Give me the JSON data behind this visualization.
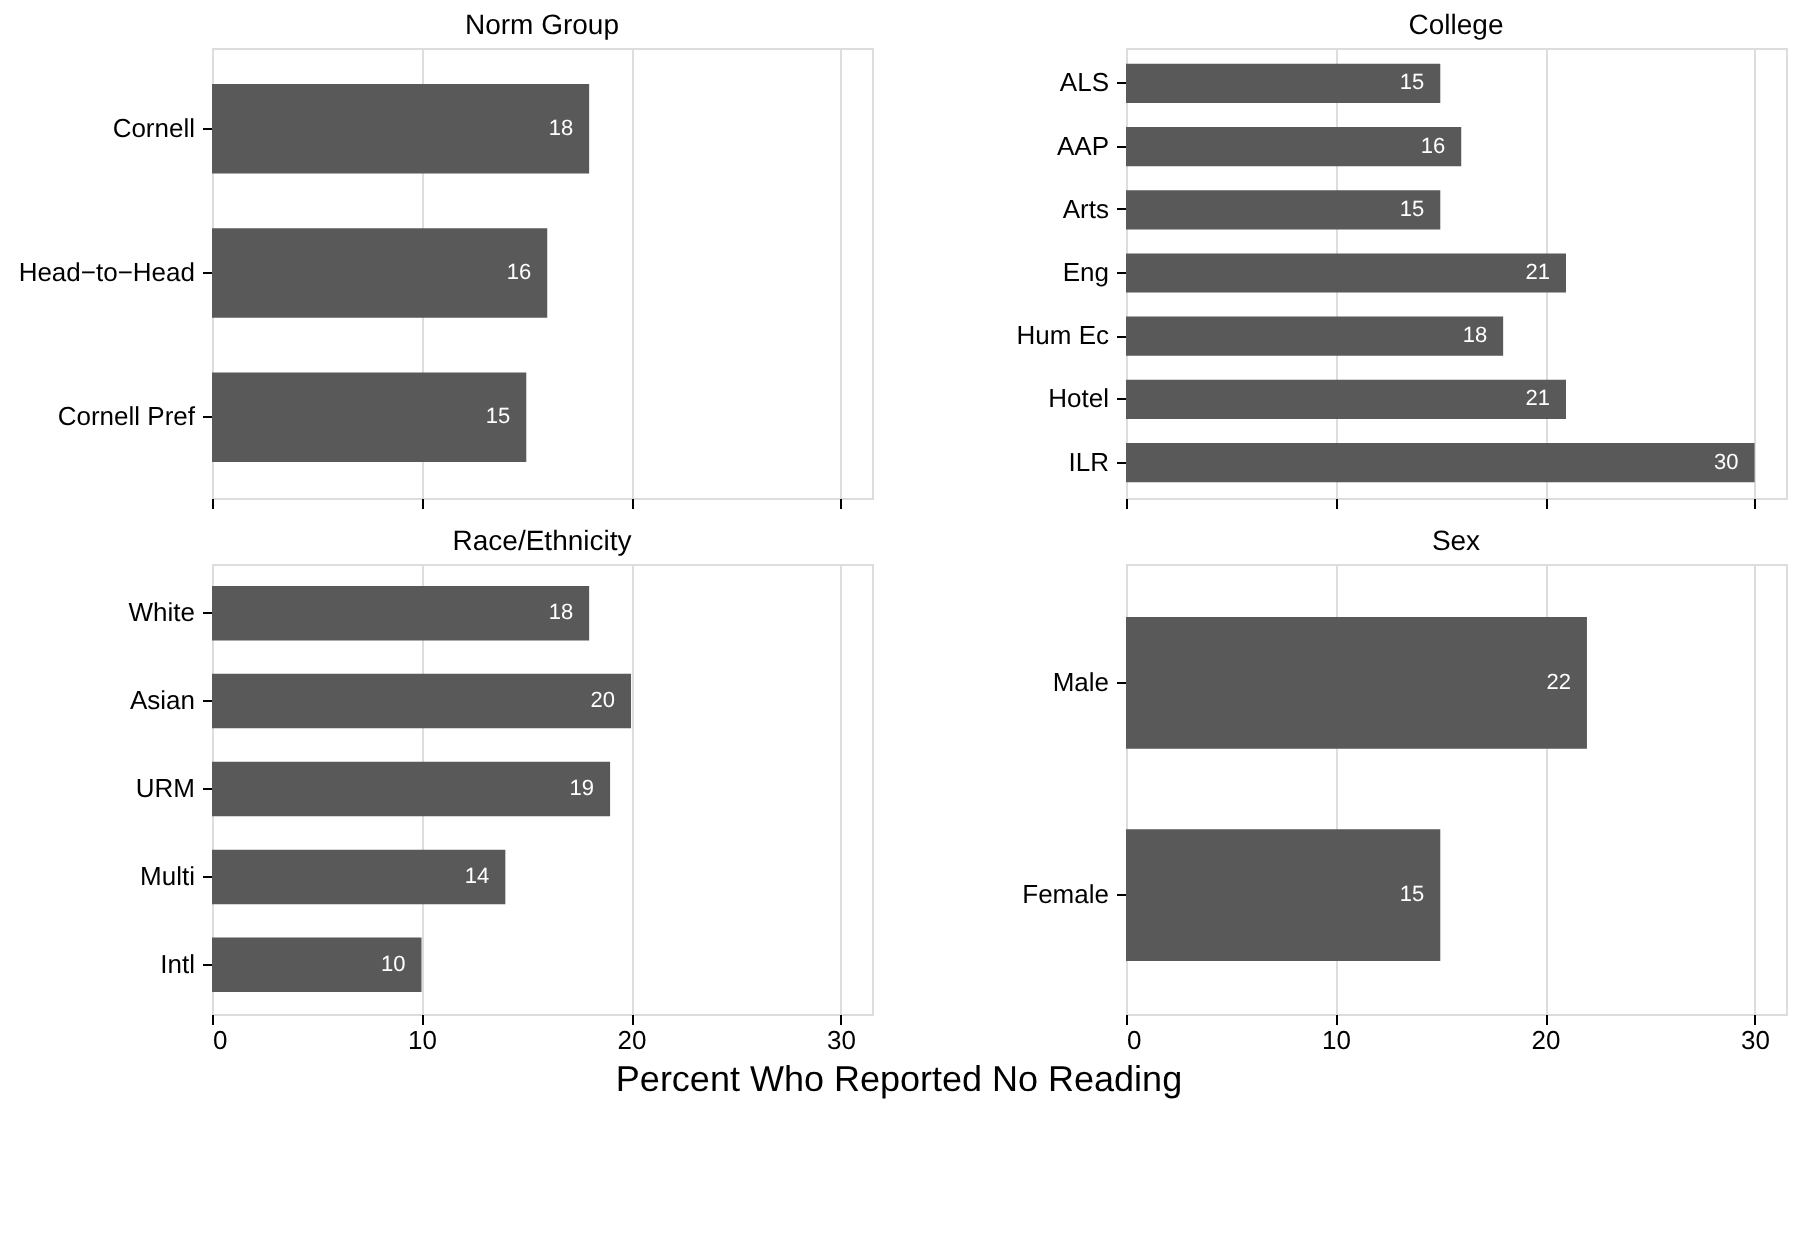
{
  "chart_data": [
    {
      "type": "bar",
      "orientation": "horizontal",
      "title": "Norm Group",
      "categories": [
        "Cornell",
        "Head−to−Head",
        "Cornell Pref"
      ],
      "values": [
        18,
        16,
        15
      ],
      "color": "#595959",
      "xlim": [
        0,
        31.5
      ],
      "xticks": [
        0,
        10,
        20,
        30
      ],
      "grid": "x",
      "data_labels": true,
      "tick_labels": "y"
    },
    {
      "type": "bar",
      "orientation": "horizontal",
      "title": "College",
      "categories": [
        "ALS",
        "AAP",
        "Arts",
        "Eng",
        "Hum Ec",
        "Hotel",
        "ILR"
      ],
      "values": [
        15,
        16,
        15,
        21,
        18,
        21,
        30
      ],
      "color": "#595959",
      "xlim": [
        0,
        31.5
      ],
      "xticks": [
        0,
        10,
        20,
        30
      ],
      "grid": "x",
      "data_labels": true,
      "tick_labels": "y"
    },
    {
      "type": "bar",
      "orientation": "horizontal",
      "title": "Race/Ethnicity",
      "categories": [
        "White",
        "Asian",
        "URM",
        "Multi",
        "Intl"
      ],
      "values": [
        18,
        20,
        19,
        14,
        10
      ],
      "color": "#595959",
      "xlim": [
        0,
        31.5
      ],
      "xticks": [
        0,
        10,
        20,
        30
      ],
      "grid": "x",
      "data_labels": true,
      "xlabel": "Percent Who Reported No Reading"
    },
    {
      "type": "bar",
      "orientation": "horizontal",
      "title": "Sex",
      "categories": [
        "Male",
        "Female"
      ],
      "values": [
        22,
        15
      ],
      "color": "#595959",
      "xlim": [
        0,
        31.5
      ],
      "xticks": [
        0,
        10,
        20,
        30
      ],
      "grid": "x",
      "data_labels": true
    }
  ]
}
